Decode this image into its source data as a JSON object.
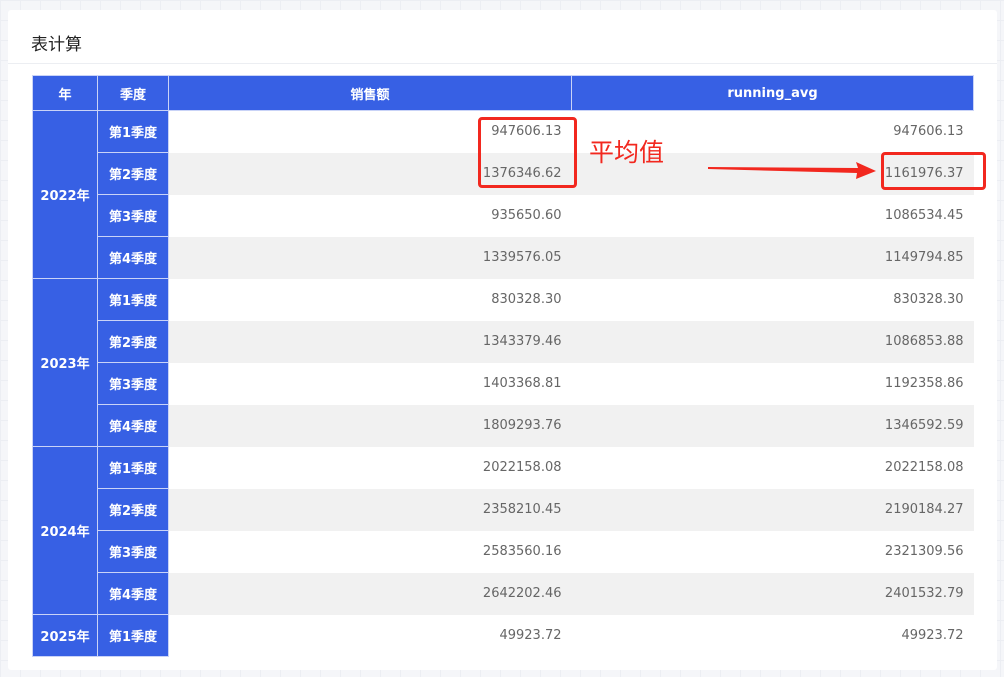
{
  "card": {
    "title": "表计算"
  },
  "table": {
    "headers": [
      "年",
      "季度",
      "销售额",
      "running_avg"
    ],
    "groups": [
      {
        "year": "2022年",
        "rows": [
          {
            "quarter": "第1季度",
            "sales": "947606.13",
            "running_avg": "947606.13"
          },
          {
            "quarter": "第2季度",
            "sales": "1376346.62",
            "running_avg": "1161976.37"
          },
          {
            "quarter": "第3季度",
            "sales": "935650.60",
            "running_avg": "1086534.45"
          },
          {
            "quarter": "第4季度",
            "sales": "1339576.05",
            "running_avg": "1149794.85"
          }
        ]
      },
      {
        "year": "2023年",
        "rows": [
          {
            "quarter": "第1季度",
            "sales": "830328.30",
            "running_avg": "830328.30"
          },
          {
            "quarter": "第2季度",
            "sales": "1343379.46",
            "running_avg": "1086853.88"
          },
          {
            "quarter": "第3季度",
            "sales": "1403368.81",
            "running_avg": "1192358.86"
          },
          {
            "quarter": "第4季度",
            "sales": "1809293.76",
            "running_avg": "1346592.59"
          }
        ]
      },
      {
        "year": "2024年",
        "rows": [
          {
            "quarter": "第1季度",
            "sales": "2022158.08",
            "running_avg": "2022158.08"
          },
          {
            "quarter": "第2季度",
            "sales": "2358210.45",
            "running_avg": "2190184.27"
          },
          {
            "quarter": "第3季度",
            "sales": "2583560.16",
            "running_avg": "2321309.56"
          },
          {
            "quarter": "第4季度",
            "sales": "2642202.46",
            "running_avg": "2401532.79"
          }
        ]
      },
      {
        "year": "2025年",
        "rows": [
          {
            "quarter": "第1季度",
            "sales": "49923.72",
            "running_avg": "49923.72"
          }
        ]
      }
    ]
  },
  "annotation": {
    "label": "平均值",
    "color": "#f2281f"
  },
  "colors": {
    "header": "#3760e4",
    "stripe": "#f1f1f1"
  }
}
